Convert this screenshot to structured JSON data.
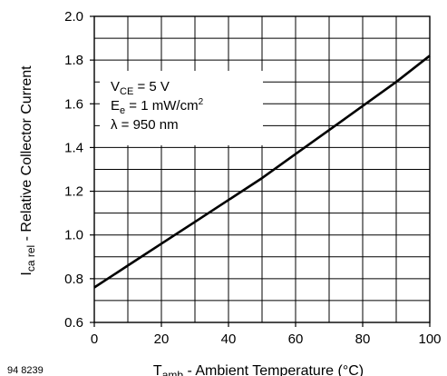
{
  "chart_data": {
    "type": "line",
    "xlabel": {
      "symbol": "T",
      "subscript": "amb",
      "text": " - Ambient Temperature (°C)"
    },
    "ylabel": {
      "symbol": "I",
      "subscript": "ca rel",
      "text": " - Relative Collector Current"
    },
    "xlim": [
      0,
      100
    ],
    "ylim": [
      0.6,
      2.0
    ],
    "xticks": [
      0,
      20,
      40,
      60,
      80,
      100
    ],
    "yticks": [
      0.6,
      0.8,
      1.0,
      1.2,
      1.4,
      1.6,
      1.8,
      2.0
    ],
    "xtick_labels": [
      "0",
      "20",
      "40",
      "60",
      "80",
      "100"
    ],
    "ytick_labels": [
      "0.6",
      "0.8",
      "1.0",
      "1.2",
      "1.4",
      "1.6",
      "1.8",
      "2.0"
    ],
    "grid": true,
    "grid_x_step": 10,
    "grid_y_step": 0.1,
    "series": [
      {
        "x": [
          0,
          10,
          20,
          30,
          40,
          50,
          60,
          70,
          80,
          90,
          100
        ],
        "values": [
          0.76,
          0.86,
          0.96,
          1.06,
          1.16,
          1.26,
          1.37,
          1.48,
          1.59,
          1.7,
          1.82
        ]
      }
    ],
    "annotations": [
      {
        "symbol": "V",
        "subscript": "CE",
        "text": " = 5 V"
      },
      {
        "symbol": "E",
        "subscript": "e",
        "text": " = 1 mW/cm",
        "superscript": "2"
      },
      {
        "symbol": "λ",
        "text": "  = 950 nm"
      }
    ],
    "figure_id": "94 8239"
  }
}
